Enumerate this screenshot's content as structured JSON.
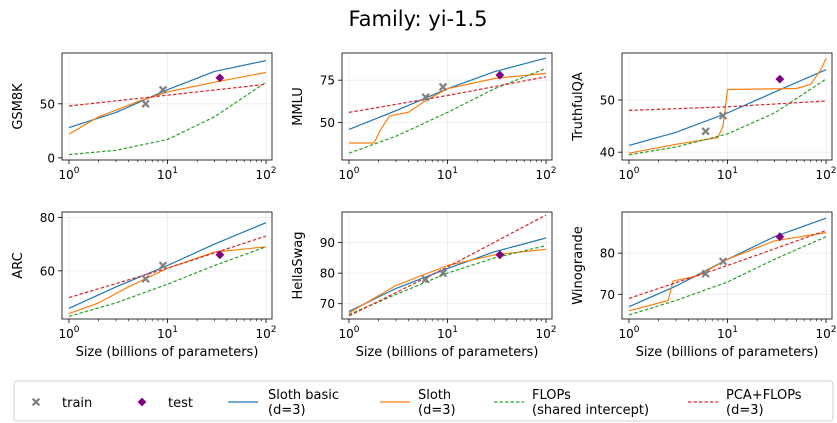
{
  "figure_title": "Family: yi-1.5",
  "x_axis_label": "Size (billions of parameters)",
  "colors": {
    "sloth_basic": "#1f77b4",
    "sloth": "#ff7f0e",
    "flops": "#2ca02c",
    "pca_flops": "#d62728",
    "train": "#808080",
    "test": "#800080"
  },
  "legend": {
    "train": "train",
    "test": "test",
    "sloth_basic": [
      "Sloth basic",
      "(d=3)"
    ],
    "sloth": [
      "Sloth",
      "(d=3)"
    ],
    "flops": [
      "FLOPs",
      "(shared intercept)"
    ],
    "pca_flops": [
      "PCA+FLOPs",
      "(d=3)"
    ]
  },
  "chart_data": [
    {
      "type": "line",
      "ylabel": "GSM8K",
      "x_scale": "log",
      "xlim": [
        0.85,
        115
      ],
      "ylim": [
        -2,
        97
      ],
      "x_ticks": [
        1,
        10,
        100
      ],
      "x_tick_labels": [
        "10^0",
        "10^1",
        "10^2"
      ],
      "y_ticks": [
        0,
        50
      ],
      "y_tick_labels": [
        "0",
        "50"
      ],
      "grid": true,
      "train": [
        [
          6,
          50
        ],
        [
          9,
          63
        ]
      ],
      "test": [
        [
          34,
          74
        ]
      ],
      "series": [
        {
          "key": "sloth_basic",
          "points": [
            [
              1,
              28
            ],
            [
              3,
              42
            ],
            [
              10,
              63
            ],
            [
              30,
              80
            ],
            [
              100,
              90
            ]
          ]
        },
        {
          "key": "sloth",
          "points": [
            [
              1,
              22
            ],
            [
              2,
              38
            ],
            [
              5,
              52
            ],
            [
              10,
              61
            ],
            [
              30,
              70
            ],
            [
              100,
              79
            ]
          ]
        },
        {
          "key": "flops",
          "points": [
            [
              1,
              3
            ],
            [
              3,
              7
            ],
            [
              10,
              17
            ],
            [
              30,
              38
            ],
            [
              100,
              70
            ]
          ]
        },
        {
          "key": "pca_flops",
          "points": [
            [
              1,
              48
            ],
            [
              10,
              58
            ],
            [
              100,
              68
            ]
          ]
        }
      ]
    },
    {
      "type": "line",
      "ylabel": "MMLU",
      "x_scale": "log",
      "xlim": [
        0.85,
        115
      ],
      "ylim": [
        28,
        91
      ],
      "x_ticks": [
        1,
        10,
        100
      ],
      "x_tick_labels": [
        "10^0",
        "10^1",
        "10^2"
      ],
      "y_ticks": [
        50,
        75
      ],
      "y_tick_labels": [
        "50",
        "75"
      ],
      "grid": true,
      "train": [
        [
          6,
          65
        ],
        [
          9,
          71
        ]
      ],
      "test": [
        [
          34,
          78
        ]
      ],
      "series": [
        {
          "key": "sloth_basic",
          "points": [
            [
              1,
              46
            ],
            [
              3,
              57
            ],
            [
              10,
              70
            ],
            [
              30,
              80
            ],
            [
              100,
              88
            ]
          ]
        },
        {
          "key": "sloth",
          "points": [
            [
              1,
              38
            ],
            [
              1.8,
              38
            ],
            [
              2.1,
              46
            ],
            [
              2.6,
              54
            ],
            [
              4,
              56
            ],
            [
              6,
              63
            ],
            [
              10,
              70
            ],
            [
              30,
              76
            ],
            [
              100,
              79
            ]
          ]
        },
        {
          "key": "flops",
          "points": [
            [
              1,
              32
            ],
            [
              3,
              42
            ],
            [
              10,
              56
            ],
            [
              30,
              70
            ],
            [
              100,
              82
            ]
          ]
        },
        {
          "key": "pca_flops",
          "points": [
            [
              1,
              56
            ],
            [
              10,
              66
            ],
            [
              100,
              77
            ]
          ]
        }
      ]
    },
    {
      "type": "line",
      "ylabel": "TruthfulQA",
      "x_scale": "log",
      "xlim": [
        0.85,
        115
      ],
      "ylim": [
        38.5,
        59
      ],
      "x_ticks": [
        1,
        10,
        100
      ],
      "x_tick_labels": [
        "10^0",
        "10^1",
        "10^2"
      ],
      "y_ticks": [
        40,
        50
      ],
      "y_tick_labels": [
        "40",
        "50"
      ],
      "grid": true,
      "train": [
        [
          6,
          44
        ],
        [
          9,
          47
        ]
      ],
      "test": [
        [
          34,
          54
        ]
      ],
      "series": [
        {
          "key": "sloth_basic",
          "points": [
            [
              1,
              41.3
            ],
            [
              3,
              43.8
            ],
            [
              10,
              47.5
            ],
            [
              30,
              51.5
            ],
            [
              100,
              55.8
            ]
          ]
        },
        {
          "key": "sloth",
          "points": [
            [
              1,
              39.8
            ],
            [
              3,
              41.5
            ],
            [
              8,
              42.8
            ],
            [
              9,
              45
            ],
            [
              10,
              52
            ],
            [
              50,
              52.2
            ],
            [
              70,
              53
            ],
            [
              90,
              56
            ],
            [
              100,
              58
            ]
          ]
        },
        {
          "key": "flops",
          "points": [
            [
              1,
              39.5
            ],
            [
              3,
              41
            ],
            [
              10,
              43.5
            ],
            [
              30,
              47.5
            ],
            [
              100,
              54
            ]
          ]
        },
        {
          "key": "pca_flops",
          "points": [
            [
              1,
              48
            ],
            [
              10,
              48.7
            ],
            [
              100,
              49.8
            ]
          ]
        }
      ]
    },
    {
      "type": "line",
      "ylabel": "ARC",
      "x_scale": "log",
      "xlim": [
        0.85,
        115
      ],
      "ylim": [
        42,
        82
      ],
      "x_ticks": [
        1,
        10,
        100
      ],
      "x_tick_labels": [
        "10^0",
        "10^1",
        "10^2"
      ],
      "y_ticks": [
        60,
        80
      ],
      "y_tick_labels": [
        "60",
        "80"
      ],
      "grid": true,
      "train": [
        [
          6,
          57
        ],
        [
          9,
          62
        ]
      ],
      "test": [
        [
          34,
          66
        ]
      ],
      "series": [
        {
          "key": "sloth_basic",
          "points": [
            [
              1,
              46
            ],
            [
              3,
              54
            ],
            [
              10,
              62
            ],
            [
              30,
              70
            ],
            [
              100,
              78
            ]
          ]
        },
        {
          "key": "sloth",
          "points": [
            [
              1,
              44
            ],
            [
              2,
              48
            ],
            [
              4,
              54
            ],
            [
              10,
              61
            ],
            [
              30,
              67
            ],
            [
              100,
              69
            ]
          ]
        },
        {
          "key": "flops",
          "points": [
            [
              1,
              43
            ],
            [
              3,
              48
            ],
            [
              10,
              55
            ],
            [
              30,
              62
            ],
            [
              100,
              69
            ]
          ]
        },
        {
          "key": "pca_flops",
          "points": [
            [
              1,
              50
            ],
            [
              10,
              61
            ],
            [
              100,
              73
            ]
          ]
        }
      ]
    },
    {
      "type": "line",
      "ylabel": "HellaSwag",
      "x_scale": "log",
      "xlim": [
        0.85,
        115
      ],
      "ylim": [
        65,
        100
      ],
      "x_ticks": [
        1,
        10,
        100
      ],
      "x_tick_labels": [
        "10^0",
        "10^1",
        "10^2"
      ],
      "y_ticks": [
        70,
        80,
        90
      ],
      "y_tick_labels": [
        "70",
        "80",
        "90"
      ],
      "grid": true,
      "train": [
        [
          6,
          78
        ],
        [
          9,
          80
        ]
      ],
      "test": [
        [
          34,
          86
        ]
      ],
      "series": [
        {
          "key": "sloth_basic",
          "points": [
            [
              1,
              67.5
            ],
            [
              3,
              75
            ],
            [
              10,
              81.5
            ],
            [
              30,
              87
            ],
            [
              100,
              91.5
            ]
          ]
        },
        {
          "key": "sloth",
          "points": [
            [
              1,
              67
            ],
            [
              3,
              76
            ],
            [
              10,
              82.5
            ],
            [
              30,
              86
            ],
            [
              100,
              87.8
            ]
          ]
        },
        {
          "key": "flops",
          "points": [
            [
              1,
              66.5
            ],
            [
              3,
              73
            ],
            [
              10,
              80
            ],
            [
              30,
              85
            ],
            [
              100,
              89
            ]
          ]
        },
        {
          "key": "pca_flops",
          "points": [
            [
              1,
              66
            ],
            [
              10,
              82
            ],
            [
              100,
              99
            ]
          ]
        }
      ]
    },
    {
      "type": "line",
      "ylabel": "Winogrande",
      "x_scale": "log",
      "xlim": [
        0.85,
        115
      ],
      "ylim": [
        64,
        90
      ],
      "x_ticks": [
        1,
        10,
        100
      ],
      "x_tick_labels": [
        "10^0",
        "10^1",
        "10^2"
      ],
      "y_ticks": [
        70,
        80
      ],
      "y_tick_labels": [
        "70",
        "80"
      ],
      "grid": true,
      "train": [
        [
          6,
          75
        ],
        [
          9,
          78
        ]
      ],
      "test": [
        [
          34,
          84
        ]
      ],
      "series": [
        {
          "key": "sloth_basic",
          "points": [
            [
              1,
              67
            ],
            [
              3,
              72
            ],
            [
              10,
              78.5
            ],
            [
              30,
              84
            ],
            [
              100,
              88.5
            ]
          ]
        },
        {
          "key": "sloth",
          "points": [
            [
              1,
              66
            ],
            [
              2.5,
              68.5
            ],
            [
              2.8,
              73.2
            ],
            [
              5,
              74.5
            ],
            [
              10,
              78.5
            ],
            [
              30,
              83
            ],
            [
              100,
              85
            ]
          ]
        },
        {
          "key": "flops",
          "points": [
            [
              1,
              65
            ],
            [
              3,
              68.5
            ],
            [
              10,
              73
            ],
            [
              30,
              78.5
            ],
            [
              100,
              84
            ]
          ]
        },
        {
          "key": "pca_flops",
          "points": [
            [
              1,
              69
            ],
            [
              10,
              77
            ],
            [
              100,
              85.5
            ]
          ]
        }
      ]
    }
  ]
}
